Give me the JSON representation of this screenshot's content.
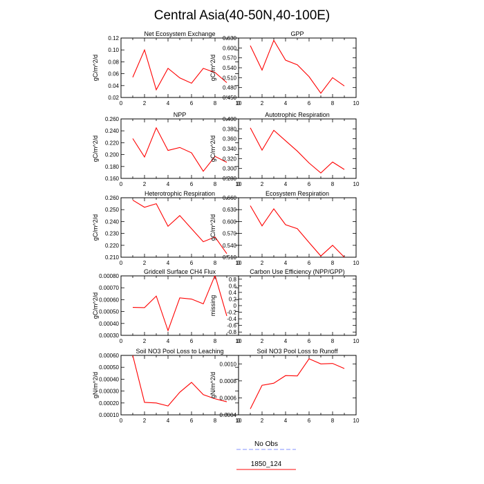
{
  "page": {
    "title": "Central Asia(40-50N,40-100E)"
  },
  "legend": {
    "entries": [
      {
        "label": "No Obs",
        "color": "#9aa6ff",
        "dash": true
      },
      {
        "label": "1850_124",
        "color": "#ff3b3b",
        "dash": false
      }
    ]
  },
  "chart_data": [
    {
      "type": "line",
      "title": "Net Ecosystem Exchange",
      "xlabel": "",
      "ylabel": "gC/m^2/d",
      "xlim": [
        0,
        10
      ],
      "ylim": [
        0.02,
        0.12
      ],
      "xticks": [
        "0",
        "2",
        "4",
        "6",
        "8",
        "10"
      ],
      "yticks": [
        "0.02",
        "0.04",
        "0.06",
        "0.08",
        "0.10",
        "0.12"
      ],
      "series": [
        {
          "name": "1850_124",
          "color": "#ff0000",
          "x": [
            1,
            2,
            3,
            4,
            5,
            6,
            7,
            8,
            9
          ],
          "y": [
            0.054,
            0.1,
            0.033,
            0.069,
            0.053,
            0.044,
            0.069,
            0.062,
            0.045
          ]
        }
      ]
    },
    {
      "type": "line",
      "title": "GPP",
      "xlabel": "",
      "ylabel": "gC/m^2/d",
      "xlim": [
        0,
        10
      ],
      "ylim": [
        0.45,
        0.63
      ],
      "xticks": [
        "0",
        "2",
        "4",
        "6",
        "8",
        "10"
      ],
      "yticks": [
        "0.450",
        "0.480",
        "0.510",
        "0.540",
        "0.570",
        "0.600",
        "0.630"
      ],
      "series": [
        {
          "name": "1850_124",
          "color": "#ff0000",
          "x": [
            1,
            2,
            3,
            4,
            5,
            6,
            7,
            8,
            9
          ],
          "y": [
            0.607,
            0.533,
            0.623,
            0.563,
            0.549,
            0.513,
            0.463,
            0.51,
            0.485
          ]
        }
      ]
    },
    {
      "type": "line",
      "title": "NPP",
      "xlabel": "",
      "ylabel": "gC/m^2/d",
      "xlim": [
        0,
        10
      ],
      "ylim": [
        0.16,
        0.26
      ],
      "xticks": [
        "0",
        "2",
        "4",
        "6",
        "8",
        "10"
      ],
      "yticks": [
        "0.160",
        "0.180",
        "0.200",
        "0.220",
        "0.240",
        "0.260"
      ],
      "series": [
        {
          "name": "1850_124",
          "color": "#ff0000",
          "x": [
            1,
            2,
            3,
            4,
            5,
            6,
            7,
            8,
            9
          ],
          "y": [
            0.227,
            0.196,
            0.245,
            0.207,
            0.212,
            0.203,
            0.172,
            0.197,
            0.187
          ]
        }
      ]
    },
    {
      "type": "line",
      "title": "Autotrophic Respiration",
      "xlabel": "",
      "ylabel": "gC/m^2/d",
      "xlim": [
        0,
        10
      ],
      "ylim": [
        0.28,
        0.4
      ],
      "xticks": [
        "0",
        "2",
        "4",
        "6",
        "8",
        "10"
      ],
      "yticks": [
        "0.280",
        "0.300",
        "0.320",
        "0.340",
        "0.360",
        "0.380",
        "0.400"
      ],
      "series": [
        {
          "name": "1850_124",
          "color": "#ff0000",
          "x": [
            1,
            2,
            3,
            4,
            5,
            6,
            7,
            8,
            9
          ],
          "y": [
            0.382,
            0.337,
            0.377,
            0.356,
            0.335,
            0.311,
            0.291,
            0.313,
            0.298
          ]
        }
      ]
    },
    {
      "type": "line",
      "title": "Heterotrophic Respiration",
      "xlabel": "",
      "ylabel": "gC/m^2/d",
      "xlim": [
        0,
        10
      ],
      "ylim": [
        0.21,
        0.26
      ],
      "xticks": [
        "0",
        "2",
        "4",
        "6",
        "8",
        "10"
      ],
      "yticks": [
        "0.210",
        "0.220",
        "0.230",
        "0.240",
        "0.250",
        "0.260"
      ],
      "series": [
        {
          "name": "1850_124",
          "color": "#ff0000",
          "x": [
            1,
            2,
            3,
            4,
            5,
            6,
            7,
            8,
            9
          ],
          "y": [
            0.258,
            0.252,
            0.255,
            0.236,
            0.245,
            0.234,
            0.223,
            0.227,
            0.213
          ]
        }
      ]
    },
    {
      "type": "line",
      "title": "Ecosystem Respiration",
      "xlabel": "",
      "ylabel": "gC/m^2/d",
      "xlim": [
        0,
        10
      ],
      "ylim": [
        0.51,
        0.66
      ],
      "xticks": [
        "0",
        "2",
        "4",
        "6",
        "8",
        "10"
      ],
      "yticks": [
        "0.510",
        "0.540",
        "0.570",
        "0.600",
        "0.630",
        "0.660"
      ],
      "series": [
        {
          "name": "1850_124",
          "color": "#ff0000",
          "x": [
            1,
            2,
            3,
            4,
            5,
            6,
            7,
            8,
            9
          ],
          "y": [
            0.64,
            0.589,
            0.632,
            0.592,
            0.582,
            0.547,
            0.513,
            0.54,
            0.51
          ]
        }
      ]
    },
    {
      "type": "line",
      "title": "Gridcell Surface CH4 Flux",
      "xlabel": "",
      "ylabel": "gC/m^2/d",
      "xlim": [
        0,
        10
      ],
      "ylim": [
        0.0003,
        0.0008
      ],
      "xticks": [
        "0",
        "2",
        "4",
        "6",
        "8",
        "10"
      ],
      "yticks": [
        "0.00030",
        "0.00040",
        "0.00050",
        "0.00060",
        "0.00070",
        "0.00080"
      ],
      "series": [
        {
          "name": "1850_124",
          "color": "#ff0000",
          "x": [
            1,
            2,
            3,
            4,
            5,
            6,
            7,
            8,
            9
          ],
          "y": [
            0.000535,
            0.000533,
            0.00063,
            0.00034,
            0.000615,
            0.000605,
            0.000565,
            0.000805,
            0.000463
          ]
        }
      ]
    },
    {
      "type": "line",
      "title": "Carbon Use Efficiency (NPP/GPP)",
      "xlabel": "",
      "ylabel": "missing",
      "xlim": [
        0,
        10
      ],
      "ylim": [
        -0.9,
        0.9
      ],
      "xticks": [
        "0",
        "2",
        "4",
        "6",
        "8",
        "10"
      ],
      "yticks": [
        "-0.8",
        "-0.6",
        "-0.4",
        "-0.2",
        "0",
        "0.2",
        "0.4",
        "0.6",
        "0.8"
      ],
      "ytick_values": [
        -0.8,
        -0.6,
        -0.4,
        -0.2,
        0,
        0.2,
        0.4,
        0.6,
        0.8
      ],
      "series": []
    },
    {
      "type": "line",
      "title": "Soil NO3 Pool Loss to Leaching",
      "xlabel": "",
      "ylabel": "gN/m^2/d",
      "xlim": [
        0,
        10
      ],
      "ylim": [
        0.0001,
        0.0006
      ],
      "xticks": [
        "0",
        "2",
        "4",
        "6",
        "8",
        "10"
      ],
      "yticks": [
        "0.00010",
        "0.00020",
        "0.00030",
        "0.00040",
        "0.00050",
        "0.00060"
      ],
      "series": [
        {
          "name": "1850_124",
          "color": "#ff0000",
          "x": [
            1,
            2,
            3,
            4,
            5,
            6,
            7,
            8,
            9
          ],
          "y": [
            0.0006,
            0.000205,
            0.0002,
            0.000175,
            0.00029,
            0.000373,
            0.00027,
            0.000235,
            0.00021
          ]
        }
      ]
    },
    {
      "type": "line",
      "title": "Soil NO3 Pool Loss to Runoff",
      "xlabel": "",
      "ylabel": "gN/m^2/d",
      "xlim": [
        0,
        10
      ],
      "ylim": [
        0.0004,
        0.0011
      ],
      "xticks": [
        "0",
        "2",
        "4",
        "6",
        "8",
        "10"
      ],
      "yticks": [
        "0.0004",
        "0.0006",
        "0.0008",
        "0.0010"
      ],
      "series": [
        {
          "name": "1850_124",
          "color": "#ff0000",
          "x": [
            1,
            2,
            3,
            4,
            5,
            6,
            7,
            8,
            9
          ],
          "y": [
            0.00047,
            0.000748,
            0.000773,
            0.000862,
            0.000858,
            0.00106,
            0.001,
            0.001005,
            0.000945
          ]
        }
      ]
    }
  ]
}
